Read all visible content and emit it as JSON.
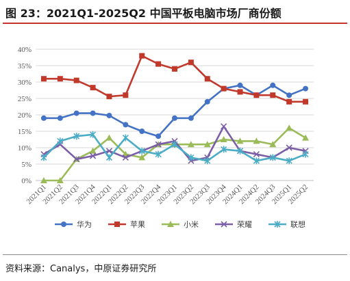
{
  "title": "图 23：2021Q1-2025Q2  中国平板电脑市场厂商份额",
  "source": "资料来源：Canalys，中原证券研究所",
  "colors": {
    "title_rule": "#c4342f"
  },
  "chart_data": {
    "type": "line",
    "title": "",
    "xlabel": "",
    "ylabel": "",
    "ylim": [
      0,
      40
    ],
    "yticks": [
      "0%",
      "5%",
      "10%",
      "15%",
      "20%",
      "25%",
      "30%",
      "35%",
      "40%"
    ],
    "grid": true,
    "legend": "bottom",
    "categories": [
      "2021Q1",
      "2021Q2",
      "2021Q3",
      "2021Q4",
      "2022Q1",
      "2022Q2",
      "2022Q3",
      "2022Q4",
      "2023Q1",
      "2023Q2",
      "2023Q3",
      "2023Q4",
      "2024Q1",
      "2024Q2",
      "2024Q3",
      "2025Q1",
      "2025Q2"
    ],
    "series": [
      {
        "name": "华为",
        "color": "#4472c4",
        "marker": "circle",
        "values": [
          19,
          19,
          20.5,
          20.5,
          19.8,
          17,
          15,
          13.5,
          19,
          19,
          24,
          28,
          29,
          26,
          29,
          26,
          28
        ]
      },
      {
        "name": "苹果",
        "color": "#c0392b",
        "marker": "square",
        "values": [
          31,
          31,
          30.5,
          28.3,
          25.6,
          26,
          38,
          35.5,
          34,
          36,
          31,
          28,
          27,
          26,
          26,
          24,
          24
        ]
      },
      {
        "name": "小米",
        "color": "#9bbb59",
        "marker": "triangle",
        "values": [
          0,
          0,
          6.5,
          9,
          13,
          8,
          7,
          11,
          11,
          11,
          11,
          12.5,
          12,
          12,
          11,
          16,
          13
        ]
      },
      {
        "name": "荣耀",
        "color": "#7b5ea7",
        "marker": "x",
        "values": [
          8,
          11,
          6.5,
          7.5,
          9,
          7,
          9,
          11,
          12,
          6,
          7,
          16.5,
          9,
          8,
          7,
          10,
          9
        ]
      },
      {
        "name": "联想",
        "color": "#4bacc6",
        "marker": "star",
        "values": [
          7,
          12,
          13.5,
          14,
          7,
          13,
          9,
          8,
          11,
          7,
          6,
          9.5,
          9,
          6,
          7,
          6,
          8
        ]
      }
    ]
  }
}
